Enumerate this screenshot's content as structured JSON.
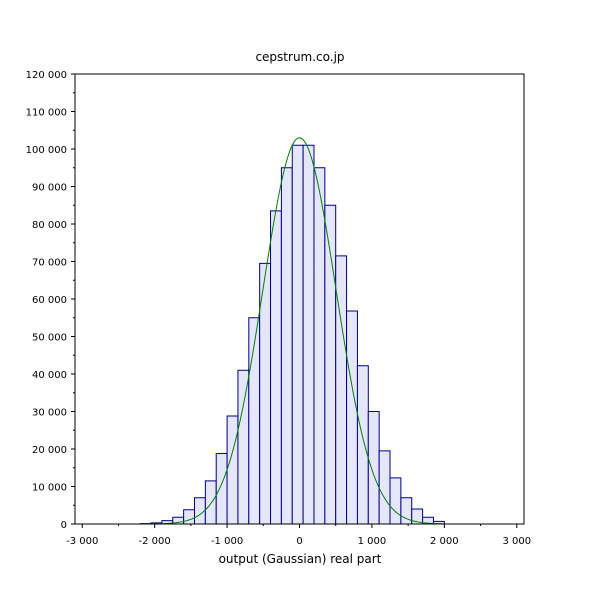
{
  "chart_data": {
    "type": "bar",
    "title": "cepstrum.co.jp",
    "xlabel": "output (Gaussian) real part",
    "ylabel": "",
    "xlim": [
      -3100,
      3100
    ],
    "ylim": [
      0,
      120000
    ],
    "grid": false,
    "x_ticks": [
      -3000,
      -2000,
      -1000,
      0,
      1000,
      2000,
      3000
    ],
    "x_tick_labels": [
      "-3 000",
      "-2 000",
      "-1 000",
      "0",
      "1 000",
      "2 000",
      "3 000"
    ],
    "y_ticks": [
      0,
      10000,
      20000,
      30000,
      40000,
      50000,
      60000,
      70000,
      80000,
      90000,
      100000,
      110000,
      120000
    ],
    "y_tick_labels": [
      "0",
      "10 000",
      "20 000",
      "30 000",
      "40 000",
      "50 000",
      "60 000",
      "70 000",
      "80 000",
      "90 000",
      "100 000",
      "110 000",
      "120 000"
    ],
    "bin_width": 150,
    "bin_edges": [
      -2200,
      -2050,
      -1900,
      -1750,
      -1600,
      -1450,
      -1300,
      -1150,
      -1000,
      -850,
      -700,
      -550,
      -400,
      -250,
      -100,
      50,
      200,
      350,
      500,
      650,
      800,
      950,
      1100,
      1250,
      1400,
      1550,
      1700,
      1850,
      2000
    ],
    "values": [
      100,
      300,
      900,
      1800,
      3800,
      7000,
      11500,
      18800,
      28800,
      41000,
      55000,
      69500,
      83500,
      95000,
      101000,
      101000,
      95000,
      85000,
      71500,
      56800,
      42200,
      30000,
      19500,
      12300,
      7000,
      4000,
      1800,
      700
    ],
    "fit_curve": {
      "type": "gaussian",
      "peak": 103000,
      "mean": 0,
      "sigma": 505
    },
    "colors": {
      "bar_fill": "#e6e6fa",
      "bar_stroke": "#00008b",
      "curve": "#008000",
      "axis": "#000000"
    }
  }
}
